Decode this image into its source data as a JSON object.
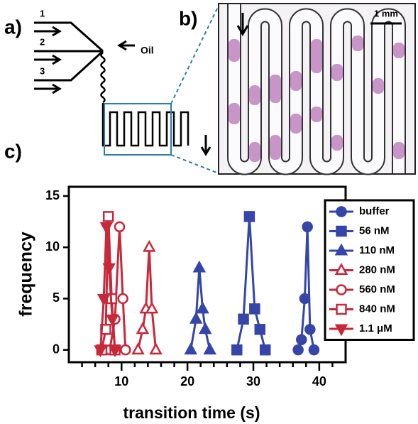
{
  "panel_labels": [
    "a)",
    "b)",
    "c)"
  ],
  "diagram": {
    "inlets": [
      "1",
      "2",
      "3"
    ],
    "oil": "Oil"
  },
  "micrograph": {
    "scale_bar": "1 mm"
  },
  "chart_data": {
    "type": "line",
    "xlabel": "transition time (s)",
    "ylabel": "frequency",
    "xlim": [
      2,
      44
    ],
    "ylim": [
      -1.2,
      15.9
    ],
    "xticks": [
      10,
      20,
      30,
      40
    ],
    "xminorticks": [
      4,
      6,
      8,
      12,
      14,
      16,
      18,
      22,
      24,
      26,
      28,
      32,
      34,
      36,
      38,
      42
    ],
    "yticks": [
      0,
      5,
      10,
      15
    ],
    "legend": "right",
    "series": [
      {
        "name": "buffer",
        "color": "#3545a8",
        "marker": "circle",
        "filled": true,
        "x": [
          36.8,
          37.3,
          37.8,
          38.2,
          38.6,
          39.2
        ],
        "values": [
          0,
          1,
          5,
          12,
          2,
          0
        ]
      },
      {
        "name": "56 nM",
        "color": "#3545a8",
        "marker": "square",
        "filled": true,
        "x": [
          27.5,
          28.5,
          29.4,
          30.2,
          31,
          31.8
        ],
        "values": [
          0,
          3,
          13,
          4,
          2,
          0
        ]
      },
      {
        "name": "110 nM",
        "color": "#3545a8",
        "marker": "triangle",
        "filled": true,
        "x": [
          20.5,
          21.3,
          21.8,
          22.3,
          22.7,
          23.4
        ],
        "values": [
          0,
          3,
          8,
          4,
          2,
          0
        ]
      },
      {
        "name": "280 nM",
        "color": "#c8283a",
        "marker": "triangle",
        "filled": false,
        "x": [
          12.5,
          13.2,
          13.7,
          14.2,
          14.6,
          15.2
        ],
        "values": [
          0,
          2,
          4,
          10,
          4,
          0
        ]
      },
      {
        "name": "560 nM",
        "color": "#c8283a",
        "marker": "circle",
        "filled": false,
        "x": [
          8.2,
          9,
          9.7,
          10.2,
          10.6
        ],
        "values": [
          0,
          3,
          12,
          5,
          0
        ]
      },
      {
        "name": "840 nM",
        "color": "#c8283a",
        "marker": "square",
        "filled": false,
        "x": [
          7,
          7.6,
          8,
          8.5,
          9
        ],
        "values": [
          0,
          2,
          13,
          5,
          0
        ]
      },
      {
        "name": "1.1 μM",
        "color": "#c8283a",
        "marker": "triangle-down",
        "filled": true,
        "x": [
          6.8,
          7.3,
          7.7,
          8.1,
          8.6,
          9
        ],
        "values": [
          0,
          5,
          12,
          8,
          3,
          0
        ]
      }
    ]
  }
}
